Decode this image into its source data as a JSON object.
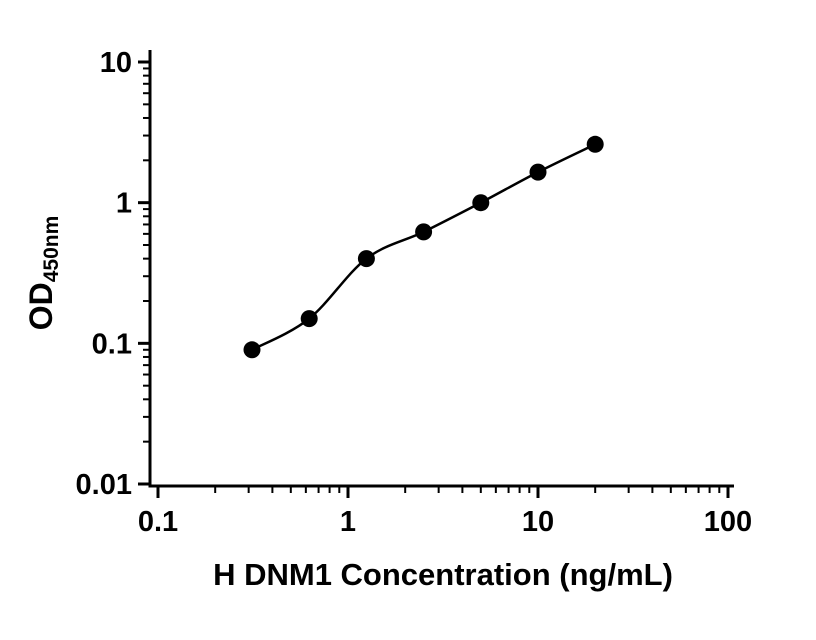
{
  "chart_data": {
    "type": "scatter",
    "title": "",
    "xlabel": "H DNM1 Concentration (ng/mL)",
    "ylabel": "OD450nm",
    "ylabel_main": "OD",
    "ylabel_sub": "450nm",
    "x_scale": "log",
    "y_scale": "log",
    "xlim": [
      0.1,
      100
    ],
    "ylim": [
      0.01,
      10
    ],
    "x_ticks": [
      0.1,
      1,
      10,
      100
    ],
    "x_tick_labels": [
      "0.1",
      "1",
      "10",
      "100"
    ],
    "y_ticks": [
      0.01,
      0.1,
      1,
      10
    ],
    "y_tick_labels": [
      "0.01",
      "0.1",
      "1",
      "10"
    ],
    "grid": false,
    "legend": false,
    "marker_color": "#000000",
    "line_color": "#000000",
    "points": [
      {
        "x": 0.3125,
        "y": 0.09
      },
      {
        "x": 0.625,
        "y": 0.15
      },
      {
        "x": 1.25,
        "y": 0.4
      },
      {
        "x": 2.5,
        "y": 0.62
      },
      {
        "x": 5,
        "y": 1.0
      },
      {
        "x": 10,
        "y": 1.65
      },
      {
        "x": 20,
        "y": 2.6
      }
    ]
  }
}
